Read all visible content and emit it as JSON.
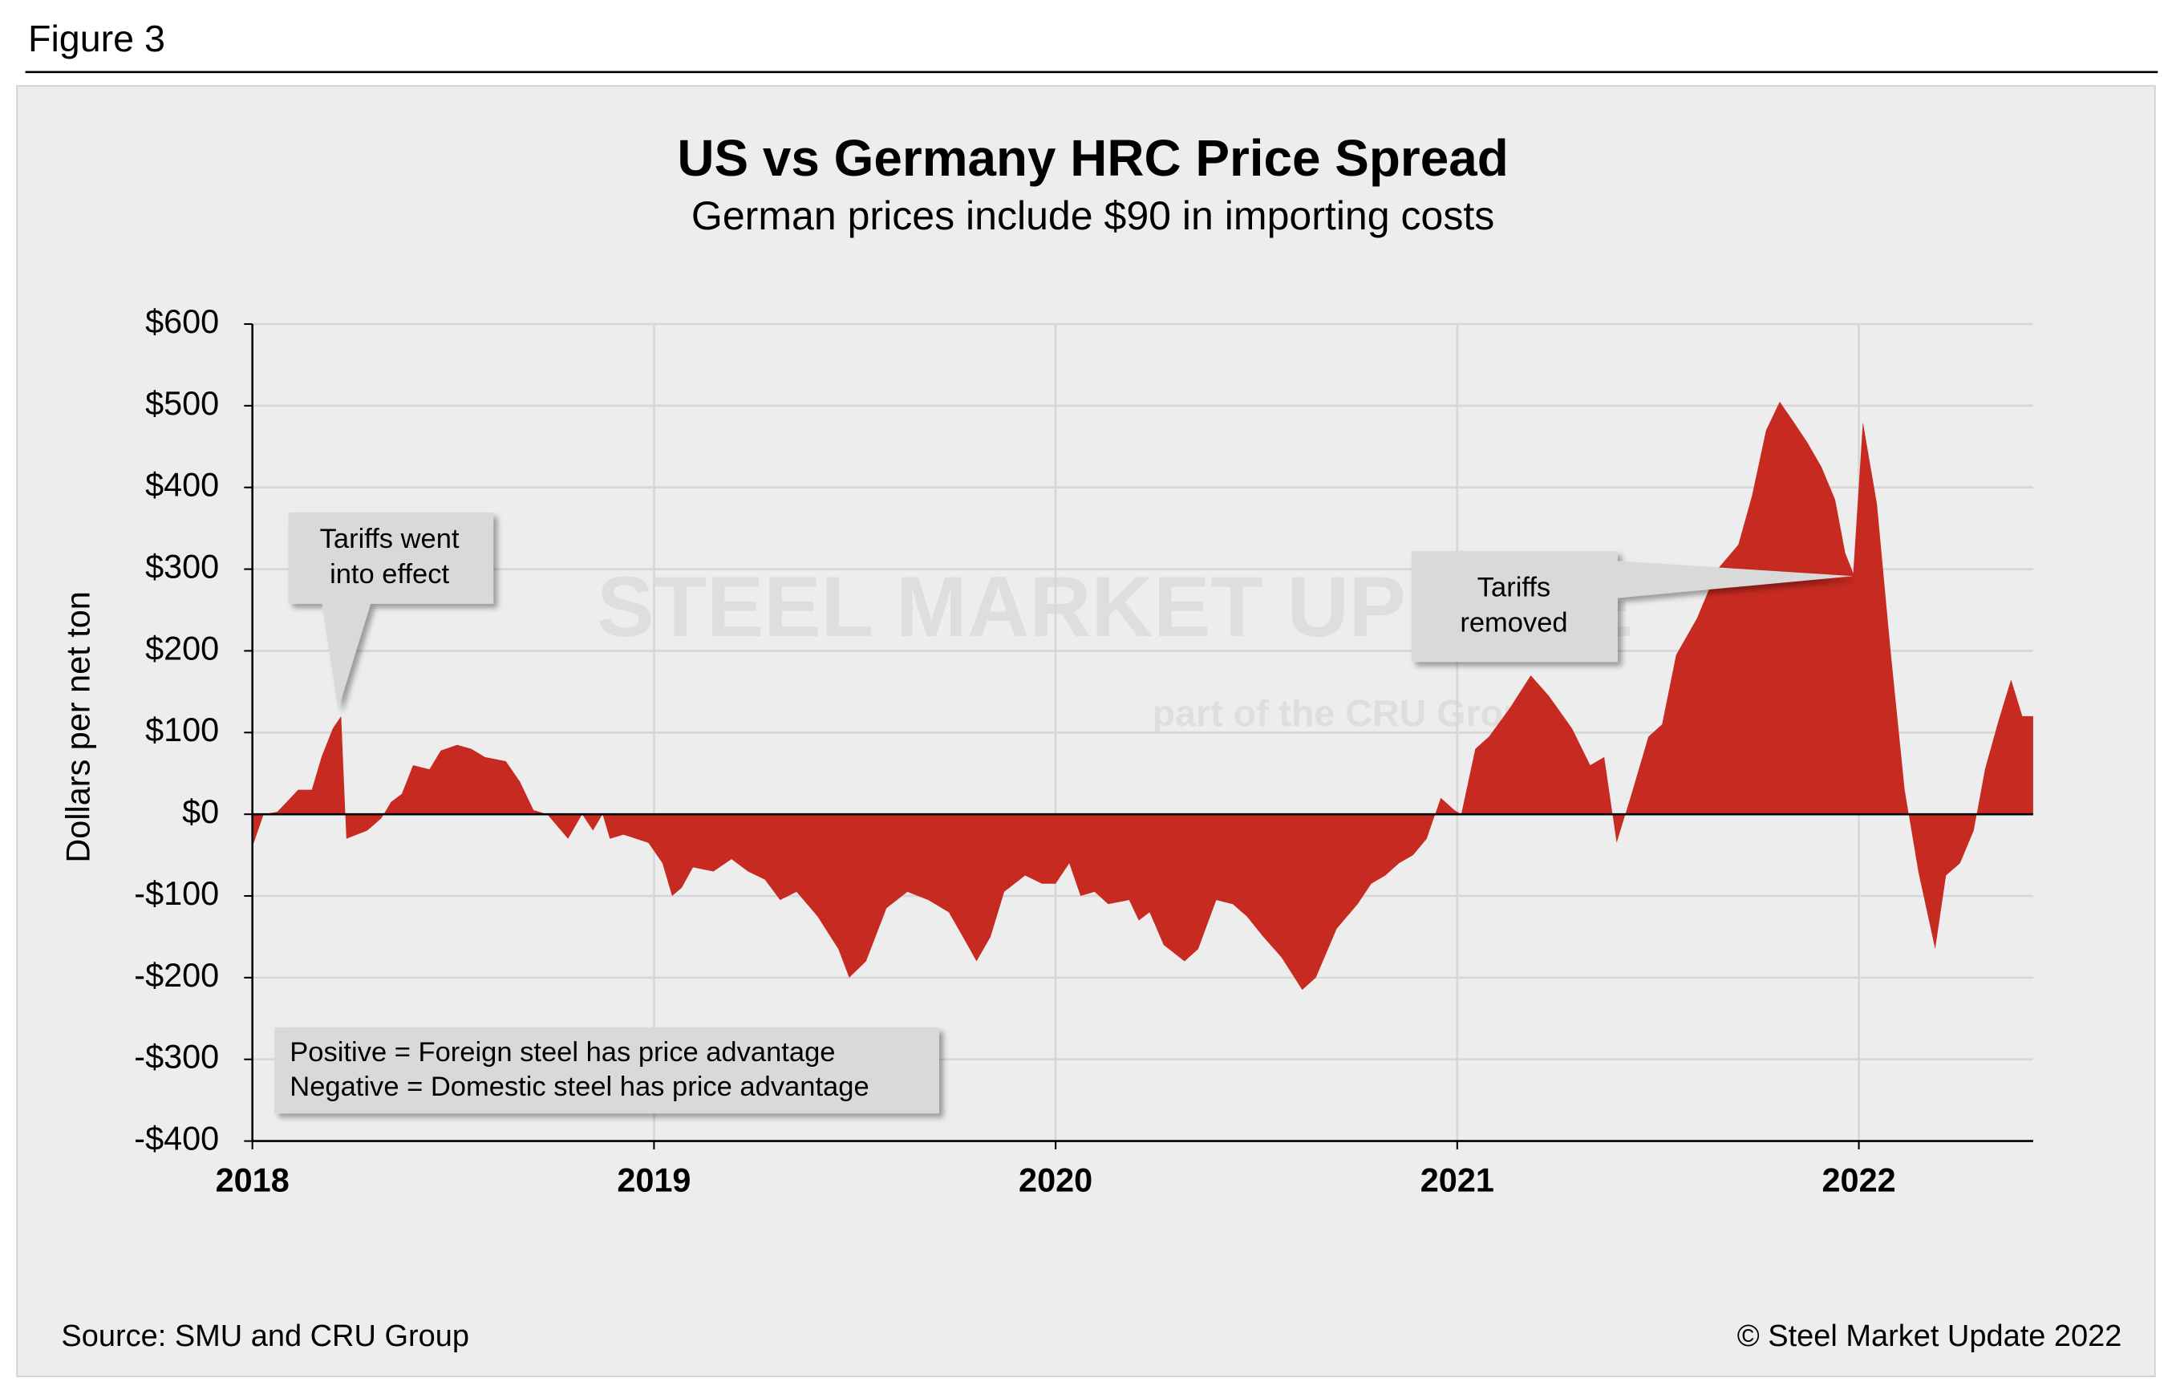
{
  "figure_label": "Figure 3",
  "chart_data": {
    "type": "area",
    "title": "US vs Germany HRC Price Spread",
    "subtitle": "German prices include $90 in importing costs",
    "y_label": "Dollars per net ton",
    "color": "#c62a20",
    "grid": true,
    "xlim": [
      2018,
      2022.434
    ],
    "xticks": [
      2018,
      2019,
      2020,
      2021,
      2022
    ],
    "ylim": [
      -400,
      600
    ],
    "yticks": [
      {
        "value": -400,
        "label": "-$400"
      },
      {
        "value": -300,
        "label": "-$300"
      },
      {
        "value": -200,
        "label": "-$200"
      },
      {
        "value": -100,
        "label": "-$100"
      },
      {
        "value": 0,
        "label": "$0"
      },
      {
        "value": 100,
        "label": "$100"
      },
      {
        "value": 200,
        "label": "$200"
      },
      {
        "value": 300,
        "label": "$300"
      },
      {
        "value": 400,
        "label": "$400"
      },
      {
        "value": 500,
        "label": "$500"
      },
      {
        "value": 600,
        "label": "$600"
      }
    ],
    "x": [
      2018.0,
      2018.028,
      2018.062,
      2018.114,
      2018.148,
      2018.172,
      2018.2,
      2018.221,
      2018.234,
      2018.286,
      2018.321,
      2018.345,
      2018.372,
      2018.4,
      2018.441,
      2018.469,
      2018.51,
      2018.545,
      2018.579,
      2018.631,
      2018.666,
      2018.7,
      2018.734,
      2018.786,
      2018.821,
      2018.848,
      2018.872,
      2018.89,
      2018.924,
      2018.986,
      2019.021,
      2019.045,
      2019.069,
      2019.097,
      2019.148,
      2019.193,
      2019.234,
      2019.276,
      2019.314,
      2019.355,
      2019.407,
      2019.459,
      2019.486,
      2019.528,
      2019.579,
      2019.631,
      2019.683,
      2019.734,
      2019.769,
      2019.803,
      2019.838,
      2019.872,
      2019.924,
      2019.966,
      2020.0,
      2020.034,
      2020.062,
      2020.097,
      2020.131,
      2020.183,
      2020.207,
      2020.234,
      2020.269,
      2020.321,
      2020.355,
      2020.4,
      2020.441,
      2020.476,
      2020.517,
      2020.562,
      2020.614,
      2020.648,
      2020.7,
      2020.752,
      2020.786,
      2020.821,
      2020.855,
      2020.89,
      2020.924,
      2020.959,
      2020.993,
      2021.01,
      2021.045,
      2021.079,
      2021.131,
      2021.183,
      2021.228,
      2021.286,
      2021.331,
      2021.366,
      2021.397,
      2021.434,
      2021.476,
      2021.51,
      2021.545,
      2021.597,
      2021.648,
      2021.7,
      2021.734,
      2021.769,
      2021.803,
      2021.838,
      2021.872,
      2021.907,
      2021.941,
      2021.966,
      2021.986,
      2022.01,
      2022.045,
      2022.079,
      2022.114,
      2022.148,
      2022.19,
      2022.217,
      2022.252,
      2022.286,
      2022.314,
      2022.348,
      2022.379,
      2022.407,
      2022.434
    ],
    "values": [
      -40,
      0,
      3,
      30,
      30,
      70,
      105,
      120,
      -30,
      -20,
      -5,
      15,
      25,
      60,
      55,
      78,
      85,
      80,
      70,
      65,
      40,
      5,
      0,
      -30,
      0,
      -20,
      0,
      -30,
      -25,
      -35,
      -60,
      -100,
      -90,
      -65,
      -70,
      -55,
      -70,
      -80,
      -105,
      -95,
      -125,
      -165,
      -200,
      -180,
      -115,
      -95,
      -105,
      -120,
      -150,
      -180,
      -150,
      -95,
      -75,
      -85,
      -85,
      -60,
      -100,
      -95,
      -110,
      -105,
      -130,
      -120,
      -160,
      -180,
      -165,
      -105,
      -110,
      -125,
      -150,
      -175,
      -215,
      -200,
      -140,
      -110,
      -85,
      -75,
      -60,
      -50,
      -30,
      20,
      5,
      0,
      80,
      95,
      130,
      170,
      145,
      105,
      60,
      70,
      -35,
      25,
      95,
      110,
      195,
      240,
      300,
      330,
      390,
      470,
      505,
      480,
      455,
      425,
      385,
      320,
      295,
      480,
      380,
      200,
      30,
      -70,
      -165,
      -75,
      -60,
      -20,
      55,
      115,
      165,
      120,
      120
    ],
    "annotations": [
      {
        "text": [
          "Tariffs went",
          "into effect"
        ]
      },
      {
        "text": [
          "Tariffs",
          "removed"
        ]
      }
    ],
    "note": [
      "Positive = Foreign steel has price advantage",
      "Negative = Domestic steel has price advantage"
    ],
    "watermark": [
      "STEEL MARKET UPDATE",
      "part of the CRU Group"
    ]
  },
  "source": "Source: SMU and CRU Group",
  "copyright": "© Steel Market Update 2022"
}
